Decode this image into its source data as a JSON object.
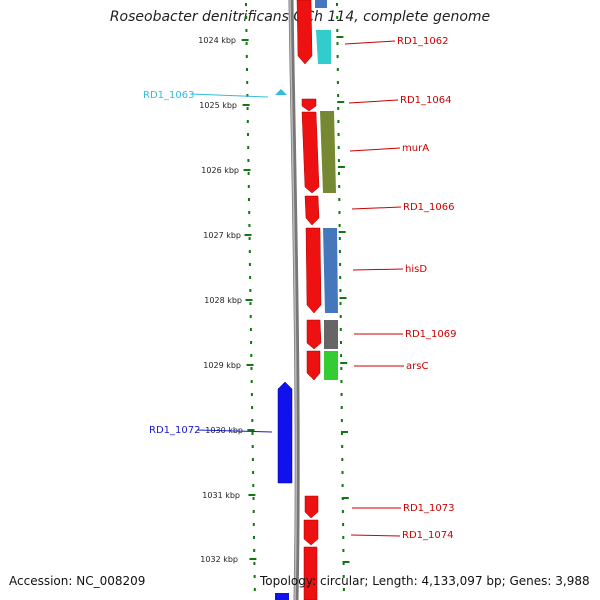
{
  "title": "Roseobacter denitrificans OCh 114, complete genome",
  "accession": "Accession: NC_008209",
  "topology": "Topology: circular; Length: 4,133,097 bp; Genes: 3,988",
  "kbp_labels": [
    "1024 kbp",
    "1025 kbp",
    "1026 kbp",
    "1027 kbp",
    "1028 kbp",
    "1029 kbp",
    "1030 kbp",
    "1031 kbp",
    "1032 kbp"
  ],
  "genes": [
    {
      "name": "RD1_1062",
      "color": "#cc0000"
    },
    {
      "name": "RD1_1063",
      "color": "#33bbdd"
    },
    {
      "name": "RD1_1064",
      "color": "#cc0000"
    },
    {
      "name": "murA",
      "color": "#cc0000"
    },
    {
      "name": "RD1_1066",
      "color": "#cc0000"
    },
    {
      "name": "hisD",
      "color": "#cc0000"
    },
    {
      "name": "RD1_1069",
      "color": "#cc0000"
    },
    {
      "name": "arsC",
      "color": "#cc0000"
    },
    {
      "name": "RD1_1072",
      "color": "#1a1acc"
    },
    {
      "name": "RD1_1073",
      "color": "#cc0000"
    },
    {
      "name": "RD1_1074",
      "color": "#cc0000"
    }
  ],
  "colors": {
    "forward_strand": "#ee1111",
    "reverse_strand": "#1111ee",
    "tick": "#117711",
    "backbone": "#888888",
    "label_right": "#cc0000",
    "label_cyan": "#33bbdd",
    "label_blue": "#1a1acc"
  }
}
